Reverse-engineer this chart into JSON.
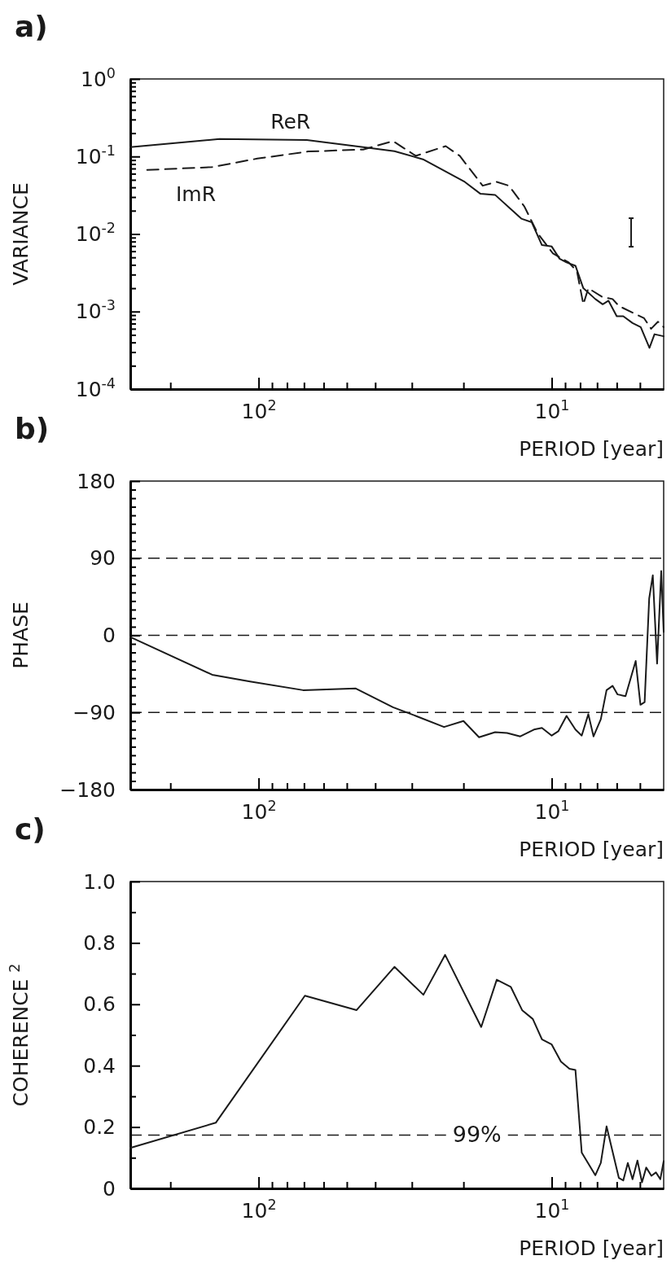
{
  "chart_data": [
    {
      "type": "line",
      "title": "a)",
      "xlabel": "PERIOD [year]",
      "ylabel": "VARIANCE",
      "log": "xy",
      "xlim": [
        274,
        4.15
      ],
      "ylim": [
        0.0001,
        1
      ],
      "xticks": [
        {
          "value": 200,
          "label": null
        },
        {
          "value": 100,
          "label": "10$^{2}$"
        },
        {
          "value": 90,
          "label": null
        },
        {
          "value": 80,
          "label": null
        },
        {
          "value": 70,
          "label": null
        },
        {
          "value": 60,
          "label": null
        },
        {
          "value": 50,
          "label": null
        },
        {
          "value": 40,
          "label": null
        },
        {
          "value": 30,
          "label": null
        },
        {
          "value": 20,
          "label": null
        },
        {
          "value": 10,
          "label": "10$^{1}$"
        },
        {
          "value": 9,
          "label": null
        },
        {
          "value": 8,
          "label": null
        },
        {
          "value": 7,
          "label": null
        },
        {
          "value": 6,
          "label": null
        },
        {
          "value": 5,
          "label": null
        }
      ],
      "yticks": [
        {
          "value": 0.0001,
          "label": "10$^{-4}$"
        },
        {
          "value": 0.0002,
          "label": null
        },
        {
          "value": 0.0003,
          "label": null
        },
        {
          "value": 0.0004,
          "label": null
        },
        {
          "value": 0.0005,
          "label": null
        },
        {
          "value": 0.0006,
          "label": null
        },
        {
          "value": 0.0007,
          "label": null
        },
        {
          "value": 0.0008,
          "label": null
        },
        {
          "value": 0.0009,
          "label": null
        },
        {
          "value": 0.001,
          "label": "10$^{-3}$"
        },
        {
          "value": 0.002,
          "label": null
        },
        {
          "value": 0.003,
          "label": null
        },
        {
          "value": 0.004,
          "label": null
        },
        {
          "value": 0.005,
          "label": null
        },
        {
          "value": 0.006,
          "label": null
        },
        {
          "value": 0.007,
          "label": null
        },
        {
          "value": 0.008,
          "label": null
        },
        {
          "value": 0.009,
          "label": null
        },
        {
          "value": 0.01,
          "label": "10$^{-2}$"
        },
        {
          "value": 0.02,
          "label": null
        },
        {
          "value": 0.03,
          "label": null
        },
        {
          "value": 0.04,
          "label": null
        },
        {
          "value": 0.05,
          "label": null
        },
        {
          "value": 0.06,
          "label": null
        },
        {
          "value": 0.07,
          "label": null
        },
        {
          "value": 0.08,
          "label": null
        },
        {
          "value": 0.09,
          "label": null
        },
        {
          "value": 0.1,
          "label": "10$^{-1}$"
        },
        {
          "value": 0.2,
          "label": null
        },
        {
          "value": 0.3,
          "label": null
        },
        {
          "value": 0.4,
          "label": null
        },
        {
          "value": 0.5,
          "label": null
        },
        {
          "value": 0.6,
          "label": null
        },
        {
          "value": 0.7,
          "label": null
        },
        {
          "value": 0.8,
          "label": null
        },
        {
          "value": 0.9,
          "label": null
        },
        {
          "value": 1,
          "label": "10$^{0}$"
        }
      ],
      "series": [
        {
          "name": "ReR",
          "color": "#1a1a1a",
          "line_style": "solid",
          "x": [
            274,
            136,
            68.5,
            44,
            34.4,
            27.5,
            19.8,
            17.5,
            15.6,
            12.7,
            11.7,
            10.8,
            10,
            9.4,
            8.9,
            8.3,
            7.8,
            7.1,
            6.7,
            6.4,
            6,
            5.7,
            5.3,
            4.97,
            4.64,
            4.46,
            4.15
          ],
          "values": [
            0.132,
            0.168,
            0.163,
            0.132,
            0.117,
            0.092,
            0.047,
            0.033,
            0.032,
            0.0158,
            0.0142,
            0.0072,
            0.0069,
            0.0048,
            0.0043,
            0.0039,
            0.002,
            0.00145,
            0.00124,
            0.00138,
            0.00087,
            0.00087,
            0.00071,
            0.00063,
            0.00034,
            0.00051,
            0.00048
          ]
        },
        {
          "name": "ImR",
          "color": "#1a1a1a",
          "line_style": "dashed",
          "x": [
            240,
            144,
            101,
            67.6,
            44,
            34.8,
            29.1,
            23,
            20.6,
            17.2,
            15.4,
            14,
            12.4,
            11.2,
            9.9,
            8.75,
            8.2,
            7.8,
            7.5,
            6.7,
            6.2,
            5.9,
            4.84,
            4.58,
            4.34,
            4.15
          ],
          "values": [
            0.067,
            0.073,
            0.094,
            0.116,
            0.123,
            0.158,
            0.102,
            0.136,
            0.102,
            0.042,
            0.047,
            0.042,
            0.0227,
            0.0104,
            0.0056,
            0.0043,
            0.0033,
            0.00124,
            0.002,
            0.00153,
            0.00145,
            0.00118,
            0.00082,
            0.0006,
            0.00074,
            0.00063
          ]
        }
      ]
    },
    {
      "type": "line",
      "title": "b)",
      "xlabel": "PERIOD [year]",
      "ylabel": "PHASE",
      "log": "x",
      "xlim": [
        274,
        4.15
      ],
      "ylim": [
        -180,
        180
      ],
      "xticks": [
        {
          "value": 200,
          "label": null
        },
        {
          "value": 100,
          "label": "10$^{2}$"
        },
        {
          "value": 90,
          "label": null
        },
        {
          "value": 80,
          "label": null
        },
        {
          "value": 70,
          "label": null
        },
        {
          "value": 60,
          "label": null
        },
        {
          "value": 50,
          "label": null
        },
        {
          "value": 40,
          "label": null
        },
        {
          "value": 30,
          "label": null
        },
        {
          "value": 20,
          "label": null
        },
        {
          "value": 10,
          "label": "10$^{1}$"
        },
        {
          "value": 9,
          "label": null
        },
        {
          "value": 8,
          "label": null
        },
        {
          "value": 7,
          "label": null
        },
        {
          "value": 6,
          "label": null
        },
        {
          "value": 5,
          "label": null
        }
      ],
      "yticks": [
        {
          "value": -180,
          "label": "−180"
        },
        {
          "value": -170,
          "label": null
        },
        {
          "value": -160,
          "label": null
        },
        {
          "value": -150,
          "label": null
        },
        {
          "value": -140,
          "label": null
        },
        {
          "value": -130,
          "label": null
        },
        {
          "value": -120,
          "label": null
        },
        {
          "value": -110,
          "label": null
        },
        {
          "value": -100,
          "label": null
        },
        {
          "value": -90,
          "label": "−90"
        },
        {
          "value": -80,
          "label": null
        },
        {
          "value": -70,
          "label": null
        },
        {
          "value": -60,
          "label": null
        },
        {
          "value": -50,
          "label": null
        },
        {
          "value": -40,
          "label": null
        },
        {
          "value": -30,
          "label": null
        },
        {
          "value": -20,
          "label": null
        },
        {
          "value": -10,
          "label": null
        },
        0,
        {
          "value": 10,
          "label": null
        },
        {
          "value": 20,
          "label": null
        },
        {
          "value": 30,
          "label": null
        },
        {
          "value": 40,
          "label": null
        },
        {
          "value": 50,
          "label": null
        },
        {
          "value": 60,
          "label": null
        },
        {
          "value": 70,
          "label": null
        },
        {
          "value": 80,
          "label": null
        },
        90,
        {
          "value": 100,
          "label": null
        },
        {
          "value": 110,
          "label": null
        },
        {
          "value": 120,
          "label": null
        },
        {
          "value": 130,
          "label": null
        },
        {
          "value": 140,
          "label": null
        },
        {
          "value": 150,
          "label": null
        },
        {
          "value": 160,
          "label": null
        },
        {
          "value": 170,
          "label": null
        },
        180
      ],
      "ref_lines": [
        {
          "axis": "y",
          "value": 90,
          "line_style": "dashed",
          "color": "#1a1a1a"
        },
        {
          "axis": "y",
          "value": 0,
          "line_style": "dashed",
          "color": "#1a1a1a"
        },
        {
          "axis": "y",
          "value": -90,
          "line_style": "dashed",
          "color": "#1a1a1a"
        }
      ],
      "series": [
        {
          "color": "#1a1a1a",
          "x": [
            274,
            144,
            107,
            70.5,
            46.6,
            34.8,
            29.1,
            23.3,
            20,
            17.7,
            15.6,
            14.2,
            12.8,
            11.5,
            10.8,
            10,
            9.5,
            8.9,
            8.3,
            7.9,
            7.5,
            7.2,
            6.8,
            6.5,
            6.2,
            5.96,
            5.6,
            5.17,
            4.98,
            4.82,
            4.65,
            4.52,
            4.37,
            4.23,
            4.15
          ],
          "values": [
            -2,
            -46,
            -54,
            -64,
            -62,
            -84,
            -94,
            -107,
            -100,
            -119,
            -113,
            -114,
            -118,
            -110,
            -108,
            -117,
            -112,
            -94,
            -110,
            -117,
            -92,
            -118,
            -98,
            -64,
            -59,
            -69,
            -71,
            -30,
            -81,
            -78,
            43,
            70,
            -33,
            75,
            4
          ]
        }
      ]
    },
    {
      "type": "line",
      "title": "c)",
      "xlabel": "PERIOD [year]",
      "ylabel": "COHERENCE $^{2}$",
      "log": "x",
      "xlim": [
        274,
        4.15
      ],
      "ylim": [
        0,
        1
      ],
      "xticks": [
        {
          "value": 200,
          "label": null
        },
        {
          "value": 100,
          "label": "10$^{2}$"
        },
        {
          "value": 90,
          "label": null
        },
        {
          "value": 80,
          "label": null
        },
        {
          "value": 70,
          "label": null
        },
        {
          "value": 60,
          "label": null
        },
        {
          "value": 50,
          "label": null
        },
        {
          "value": 40,
          "label": null
        },
        {
          "value": 30,
          "label": null
        },
        {
          "value": 20,
          "label": null
        },
        {
          "value": 10,
          "label": "10$^{1}$"
        },
        {
          "value": 9,
          "label": null
        },
        {
          "value": 8,
          "label": null
        },
        {
          "value": 7,
          "label": null
        },
        {
          "value": 6,
          "label": null
        },
        {
          "value": 5,
          "label": null
        }
      ],
      "yticks": [
        {
          "value": 0,
          "label": "0"
        },
        {
          "value": 0.1,
          "label": null
        },
        {
          "value": 0.2,
          "label": "0.2"
        },
        {
          "value": 0.3,
          "label": null
        },
        {
          "value": 0.4,
          "label": "0.4"
        },
        {
          "value": 0.5,
          "label": null
        },
        {
          "value": 0.6,
          "label": "0.6"
        },
        {
          "value": 0.7,
          "label": null
        },
        {
          "value": 0.8,
          "label": "0.8"
        },
        {
          "value": 0.9,
          "label": null
        },
        {
          "value": 1,
          "label": "1.0"
        }
      ],
      "ref_lines": [
        {
          "axis": "y",
          "value": 0.174,
          "line_style": "dashed",
          "color": "#1a1a1a"
        }
      ],
      "annotations": [
        "99%"
      ],
      "series": [
        {
          "color": "#1a1a1a",
          "x": [
            274,
            140,
            69.5,
            46.3,
            34.4,
            27.4,
            23.1,
            17.4,
            15.4,
            13.8,
            12.6,
            11.6,
            10.8,
            10,
            9.3,
            8.7,
            8.3,
            7.9,
            7.1,
            6.8,
            6.5,
            5.9,
            5.7,
            5.5,
            5.3,
            5.1,
            4.92,
            4.76,
            4.57,
            4.41,
            4.26,
            4.15
          ],
          "values": [
            0.132,
            0.214,
            0.628,
            0.581,
            0.722,
            0.631,
            0.761,
            0.526,
            0.68,
            0.657,
            0.58,
            0.552,
            0.486,
            0.469,
            0.413,
            0.39,
            0.386,
            0.117,
            0.043,
            0.083,
            0.202,
            0.034,
            0.026,
            0.083,
            0.03,
            0.091,
            0.02,
            0.068,
            0.041,
            0.052,
            0.03,
            0.089
          ]
        }
      ]
    }
  ]
}
